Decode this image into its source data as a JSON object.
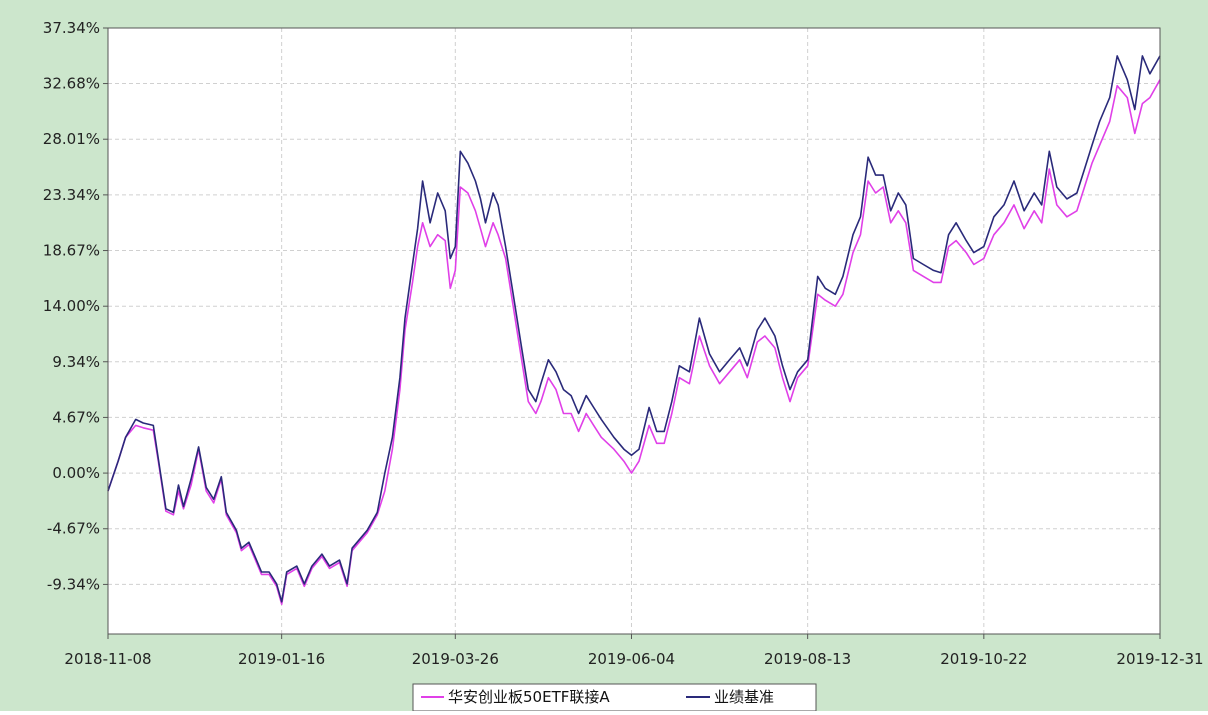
{
  "chart_data": {
    "type": "line",
    "title": "",
    "xlabel": "",
    "ylabel": "",
    "y_ticks": [
      "37.34%",
      "32.68%",
      "28.01%",
      "23.34%",
      "18.67%",
      "14.00%",
      "9.34%",
      "4.67%",
      "0.00%",
      "-4.67%",
      "-9.34%"
    ],
    "ylim": [
      -13.5,
      37.34
    ],
    "x_ticks": [
      "2018-11-08",
      "2019-01-16",
      "2019-03-26",
      "2019-06-04",
      "2019-08-13",
      "2019-10-22",
      "2019-12-31"
    ],
    "grid": true,
    "legend_position": "bottom-center",
    "series": [
      {
        "name": "华安创业板50ETF联接A",
        "color": "#e040e8",
        "points": [
          [
            "2018-11-08",
            -1.5
          ],
          [
            "2018-11-12",
            1.0
          ],
          [
            "2018-11-15",
            3.0
          ],
          [
            "2018-11-19",
            4.0
          ],
          [
            "2018-11-22",
            3.8
          ],
          [
            "2018-11-26",
            3.6
          ],
          [
            "2018-11-28",
            1.0
          ],
          [
            "2018-12-01",
            -3.2
          ],
          [
            "2018-12-04",
            -3.5
          ],
          [
            "2018-12-06",
            -1.5
          ],
          [
            "2018-12-08",
            -3.0
          ],
          [
            "2018-12-11",
            -1.0
          ],
          [
            "2018-12-14",
            2.0
          ],
          [
            "2018-12-17",
            -1.5
          ],
          [
            "2018-12-20",
            -2.5
          ],
          [
            "2018-12-23",
            -0.5
          ],
          [
            "2018-12-25",
            -3.5
          ],
          [
            "2018-12-29",
            -5.0
          ],
          [
            "2018-12-31",
            -6.5
          ],
          [
            "2019-01-03",
            -6.0
          ],
          [
            "2019-01-06",
            -7.5
          ],
          [
            "2019-01-08",
            -8.5
          ],
          [
            "2019-01-11",
            -8.5
          ],
          [
            "2019-01-14",
            -9.5
          ],
          [
            "2019-01-16",
            -11.0
          ],
          [
            "2019-01-18",
            -8.5
          ],
          [
            "2019-01-22",
            -8.0
          ],
          [
            "2019-01-25",
            -9.5
          ],
          [
            "2019-01-28",
            -8.0
          ],
          [
            "2019-02-01",
            -7.0
          ],
          [
            "2019-02-04",
            -8.0
          ],
          [
            "2019-02-08",
            -7.5
          ],
          [
            "2019-02-11",
            -9.5
          ],
          [
            "2019-02-13",
            -6.5
          ],
          [
            "2019-02-19",
            -5.0
          ],
          [
            "2019-02-23",
            -3.5
          ],
          [
            "2019-02-26",
            -1.5
          ],
          [
            "2019-03-01",
            2.0
          ],
          [
            "2019-03-04",
            7.0
          ],
          [
            "2019-03-06",
            12.0
          ],
          [
            "2019-03-09",
            16.0
          ],
          [
            "2019-03-11",
            19.0
          ],
          [
            "2019-03-13",
            21.0
          ],
          [
            "2019-03-16",
            19.0
          ],
          [
            "2019-03-19",
            20.0
          ],
          [
            "2019-03-22",
            19.5
          ],
          [
            "2019-03-24",
            15.5
          ],
          [
            "2019-03-26",
            17.0
          ],
          [
            "2019-03-28",
            24.0
          ],
          [
            "2019-03-31",
            23.5
          ],
          [
            "2019-04-03",
            22.0
          ],
          [
            "2019-04-05",
            20.5
          ],
          [
            "2019-04-07",
            19.0
          ],
          [
            "2019-04-10",
            21.0
          ],
          [
            "2019-04-12",
            20.0
          ],
          [
            "2019-04-15",
            18.0
          ],
          [
            "2019-04-18",
            14.0
          ],
          [
            "2019-04-21",
            10.0
          ],
          [
            "2019-04-24",
            6.0
          ],
          [
            "2019-04-27",
            5.0
          ],
          [
            "2019-04-29",
            6.0
          ],
          [
            "2019-05-02",
            8.0
          ],
          [
            "2019-05-05",
            7.0
          ],
          [
            "2019-05-08",
            5.0
          ],
          [
            "2019-05-11",
            5.0
          ],
          [
            "2019-05-14",
            3.5
          ],
          [
            "2019-05-17",
            5.0
          ],
          [
            "2019-05-20",
            4.0
          ],
          [
            "2019-05-23",
            3.0
          ],
          [
            "2019-05-28",
            2.0
          ],
          [
            "2019-06-01",
            1.0
          ],
          [
            "2019-06-04",
            0.0
          ],
          [
            "2019-06-07",
            1.0
          ],
          [
            "2019-06-11",
            4.0
          ],
          [
            "2019-06-14",
            2.5
          ],
          [
            "2019-06-17",
            2.5
          ],
          [
            "2019-06-20",
            5.0
          ],
          [
            "2019-06-23",
            8.0
          ],
          [
            "2019-06-27",
            7.5
          ],
          [
            "2019-07-01",
            11.5
          ],
          [
            "2019-07-05",
            9.0
          ],
          [
            "2019-07-09",
            7.5
          ],
          [
            "2019-07-13",
            8.5
          ],
          [
            "2019-07-17",
            9.5
          ],
          [
            "2019-07-20",
            8.0
          ],
          [
            "2019-07-24",
            11.0
          ],
          [
            "2019-07-27",
            11.5
          ],
          [
            "2019-07-31",
            10.5
          ],
          [
            "2019-08-03",
            8.0
          ],
          [
            "2019-08-06",
            6.0
          ],
          [
            "2019-08-09",
            8.0
          ],
          [
            "2019-08-13",
            9.0
          ],
          [
            "2019-08-17",
            15.0
          ],
          [
            "2019-08-20",
            14.5
          ],
          [
            "2019-08-24",
            14.0
          ],
          [
            "2019-08-27",
            15.0
          ],
          [
            "2019-08-31",
            18.5
          ],
          [
            "2019-09-03",
            20.0
          ],
          [
            "2019-09-06",
            24.5
          ],
          [
            "2019-09-09",
            23.5
          ],
          [
            "2019-09-12",
            24.0
          ],
          [
            "2019-09-15",
            21.0
          ],
          [
            "2019-09-18",
            22.0
          ],
          [
            "2019-09-21",
            21.0
          ],
          [
            "2019-09-24",
            17.0
          ],
          [
            "2019-09-28",
            16.5
          ],
          [
            "2019-10-02",
            16.0
          ],
          [
            "2019-10-05",
            16.0
          ],
          [
            "2019-10-08",
            19.0
          ],
          [
            "2019-10-11",
            19.5
          ],
          [
            "2019-10-15",
            18.5
          ],
          [
            "2019-10-18",
            17.5
          ],
          [
            "2019-10-22",
            18.0
          ],
          [
            "2019-10-26",
            20.0
          ],
          [
            "2019-10-30",
            21.0
          ],
          [
            "2019-11-03",
            22.5
          ],
          [
            "2019-11-07",
            20.5
          ],
          [
            "2019-11-11",
            22.0
          ],
          [
            "2019-11-14",
            21.0
          ],
          [
            "2019-11-17",
            25.5
          ],
          [
            "2019-11-20",
            22.5
          ],
          [
            "2019-11-24",
            21.5
          ],
          [
            "2019-11-28",
            22.0
          ],
          [
            "2019-12-01",
            24.0
          ],
          [
            "2019-12-04",
            26.0
          ],
          [
            "2019-12-07",
            27.5
          ],
          [
            "2019-12-11",
            29.5
          ],
          [
            "2019-12-14",
            32.5
          ],
          [
            "2019-12-18",
            31.5
          ],
          [
            "2019-12-21",
            28.5
          ],
          [
            "2019-12-24",
            31.0
          ],
          [
            "2019-12-27",
            31.5
          ],
          [
            "2019-12-31",
            33.0
          ]
        ]
      },
      {
        "name": "业绩基准",
        "color": "#2a2a7a",
        "points": [
          [
            "2018-11-08",
            -1.5
          ],
          [
            "2018-11-12",
            1.0
          ],
          [
            "2018-11-15",
            3.0
          ],
          [
            "2018-11-19",
            4.5
          ],
          [
            "2018-11-22",
            4.2
          ],
          [
            "2018-11-26",
            4.0
          ],
          [
            "2018-11-28",
            1.2
          ],
          [
            "2018-12-01",
            -3.0
          ],
          [
            "2018-12-04",
            -3.3
          ],
          [
            "2018-12-06",
            -1.0
          ],
          [
            "2018-12-08",
            -2.8
          ],
          [
            "2018-12-11",
            -0.5
          ],
          [
            "2018-12-14",
            2.2
          ],
          [
            "2018-12-17",
            -1.2
          ],
          [
            "2018-12-20",
            -2.2
          ],
          [
            "2018-12-23",
            -0.3
          ],
          [
            "2018-12-25",
            -3.3
          ],
          [
            "2018-12-29",
            -4.8
          ],
          [
            "2018-12-31",
            -6.3
          ],
          [
            "2019-01-03",
            -5.8
          ],
          [
            "2019-01-06",
            -7.3
          ],
          [
            "2019-01-08",
            -8.3
          ],
          [
            "2019-01-11",
            -8.3
          ],
          [
            "2019-01-14",
            -9.3
          ],
          [
            "2019-01-16",
            -10.8
          ],
          [
            "2019-01-18",
            -8.3
          ],
          [
            "2019-01-22",
            -7.8
          ],
          [
            "2019-01-25",
            -9.3
          ],
          [
            "2019-01-28",
            -7.8
          ],
          [
            "2019-02-01",
            -6.8
          ],
          [
            "2019-02-04",
            -7.8
          ],
          [
            "2019-02-08",
            -7.3
          ],
          [
            "2019-02-11",
            -9.3
          ],
          [
            "2019-02-13",
            -6.3
          ],
          [
            "2019-02-19",
            -4.8
          ],
          [
            "2019-02-23",
            -3.3
          ],
          [
            "2019-02-26",
            0.0
          ],
          [
            "2019-03-01",
            3.0
          ],
          [
            "2019-03-04",
            8.0
          ],
          [
            "2019-03-06",
            13.0
          ],
          [
            "2019-03-09",
            17.5
          ],
          [
            "2019-03-11",
            20.5
          ],
          [
            "2019-03-13",
            24.5
          ],
          [
            "2019-03-16",
            21.0
          ],
          [
            "2019-03-19",
            23.5
          ],
          [
            "2019-03-22",
            22.0
          ],
          [
            "2019-03-24",
            18.0
          ],
          [
            "2019-03-26",
            19.0
          ],
          [
            "2019-03-28",
            27.0
          ],
          [
            "2019-03-31",
            26.0
          ],
          [
            "2019-04-03",
            24.5
          ],
          [
            "2019-04-05",
            23.0
          ],
          [
            "2019-04-07",
            21.0
          ],
          [
            "2019-04-10",
            23.5
          ],
          [
            "2019-04-12",
            22.5
          ],
          [
            "2019-04-15",
            19.0
          ],
          [
            "2019-04-18",
            15.0
          ],
          [
            "2019-04-21",
            11.0
          ],
          [
            "2019-04-24",
            7.0
          ],
          [
            "2019-04-27",
            6.0
          ],
          [
            "2019-04-29",
            7.5
          ],
          [
            "2019-05-02",
            9.5
          ],
          [
            "2019-05-05",
            8.5
          ],
          [
            "2019-05-08",
            7.0
          ],
          [
            "2019-05-11",
            6.5
          ],
          [
            "2019-05-14",
            5.0
          ],
          [
            "2019-05-17",
            6.5
          ],
          [
            "2019-05-20",
            5.5
          ],
          [
            "2019-05-23",
            4.5
          ],
          [
            "2019-05-28",
            3.0
          ],
          [
            "2019-06-01",
            2.0
          ],
          [
            "2019-06-04",
            1.5
          ],
          [
            "2019-06-07",
            2.0
          ],
          [
            "2019-06-11",
            5.5
          ],
          [
            "2019-06-14",
            3.5
          ],
          [
            "2019-06-17",
            3.5
          ],
          [
            "2019-06-20",
            6.0
          ],
          [
            "2019-06-23",
            9.0
          ],
          [
            "2019-06-27",
            8.5
          ],
          [
            "2019-07-01",
            13.0
          ],
          [
            "2019-07-05",
            10.0
          ],
          [
            "2019-07-09",
            8.5
          ],
          [
            "2019-07-13",
            9.5
          ],
          [
            "2019-07-17",
            10.5
          ],
          [
            "2019-07-20",
            9.0
          ],
          [
            "2019-07-24",
            12.0
          ],
          [
            "2019-07-27",
            13.0
          ],
          [
            "2019-07-31",
            11.5
          ],
          [
            "2019-08-03",
            9.0
          ],
          [
            "2019-08-06",
            7.0
          ],
          [
            "2019-08-09",
            8.5
          ],
          [
            "2019-08-13",
            9.5
          ],
          [
            "2019-08-17",
            16.5
          ],
          [
            "2019-08-20",
            15.5
          ],
          [
            "2019-08-24",
            15.0
          ],
          [
            "2019-08-27",
            16.5
          ],
          [
            "2019-08-31",
            20.0
          ],
          [
            "2019-09-03",
            21.5
          ],
          [
            "2019-09-06",
            26.5
          ],
          [
            "2019-09-09",
            25.0
          ],
          [
            "2019-09-12",
            25.0
          ],
          [
            "2019-09-15",
            22.0
          ],
          [
            "2019-09-18",
            23.5
          ],
          [
            "2019-09-21",
            22.5
          ],
          [
            "2019-09-24",
            18.0
          ],
          [
            "2019-09-28",
            17.5
          ],
          [
            "2019-10-02",
            17.0
          ],
          [
            "2019-10-05",
            16.8
          ],
          [
            "2019-10-08",
            20.0
          ],
          [
            "2019-10-11",
            21.0
          ],
          [
            "2019-10-15",
            19.5
          ],
          [
            "2019-10-18",
            18.5
          ],
          [
            "2019-10-22",
            19.0
          ],
          [
            "2019-10-26",
            21.5
          ],
          [
            "2019-10-30",
            22.5
          ],
          [
            "2019-11-03",
            24.5
          ],
          [
            "2019-11-07",
            22.0
          ],
          [
            "2019-11-11",
            23.5
          ],
          [
            "2019-11-14",
            22.5
          ],
          [
            "2019-11-17",
            27.0
          ],
          [
            "2019-11-20",
            24.0
          ],
          [
            "2019-11-24",
            23.0
          ],
          [
            "2019-11-28",
            23.5
          ],
          [
            "2019-12-01",
            25.5
          ],
          [
            "2019-12-04",
            27.5
          ],
          [
            "2019-12-07",
            29.5
          ],
          [
            "2019-12-11",
            31.5
          ],
          [
            "2019-12-14",
            35.0
          ],
          [
            "2019-12-18",
            33.0
          ],
          [
            "2019-12-21",
            30.5
          ],
          [
            "2019-12-24",
            35.0
          ],
          [
            "2019-12-27",
            33.5
          ],
          [
            "2019-12-31",
            35.0
          ]
        ]
      }
    ]
  },
  "style": {
    "page_background": "#cce6cc",
    "plot_background": "#ffffff",
    "grid_color": "#d0d0d0",
    "axis_color": "#555555"
  }
}
